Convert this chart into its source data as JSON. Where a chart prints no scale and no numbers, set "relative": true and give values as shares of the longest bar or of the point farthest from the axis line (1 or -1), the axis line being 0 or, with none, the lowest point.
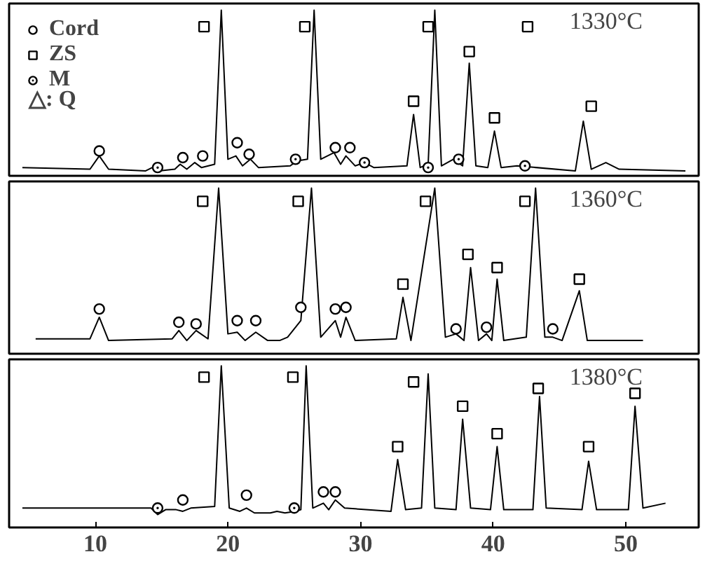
{
  "chart_data": [
    {
      "type": "line",
      "title": "1330°C",
      "relative": true,
      "xlim": [
        3.5,
        55.5
      ],
      "xticks": [
        10,
        20,
        30,
        40,
        50
      ],
      "tick_labels": false,
      "legend": "top left",
      "grid": false,
      "series": [
        {
          "color": "#000000",
          "x": [
            4.5,
            9.6,
            10.3,
            11.0,
            13.8,
            14.3,
            14.8,
            16.0,
            16.4,
            16.9,
            17.5,
            18.0,
            19.0,
            19.5,
            20.0,
            20.6,
            21.1,
            21.7,
            22.3,
            24.7,
            25.2,
            26.0,
            26.5,
            27.0,
            28.0,
            28.5,
            28.9,
            29.6,
            30.3,
            31.0,
            33.5,
            34.0,
            34.5,
            35.1,
            35.6,
            36.1,
            37.0,
            37.7,
            38.2,
            38.7,
            39.6,
            40.1,
            40.6,
            41.8,
            46.2,
            46.8,
            47.4,
            48.5,
            49.5,
            54.5
          ],
          "values": [
            0.05,
            0.04,
            0.12,
            0.04,
            0.03,
            0.05,
            0.03,
            0.04,
            0.07,
            0.04,
            0.08,
            0.05,
            0.07,
            1.0,
            0.1,
            0.12,
            0.06,
            0.1,
            0.05,
            0.06,
            0.09,
            0.1,
            1.0,
            0.1,
            0.14,
            0.07,
            0.12,
            0.06,
            0.08,
            0.05,
            0.06,
            0.37,
            0.05,
            0.07,
            1.0,
            0.06,
            0.1,
            0.06,
            0.68,
            0.06,
            0.05,
            0.27,
            0.05,
            0.06,
            0.03,
            0.33,
            0.04,
            0.08,
            0.04,
            0.03
          ]
        },
        {
          "type": "scatter",
          "name": "Cord",
          "marker": "circle",
          "color": "#000000",
          "x": [
            10.3,
            16.6,
            18.1,
            20.7,
            21.6,
            28.1,
            29.2
          ],
          "values": [
            0.15,
            0.11,
            0.12,
            0.2,
            0.13,
            0.17,
            0.17
          ]
        },
        {
          "type": "scatter",
          "name": "ZS",
          "marker": "square",
          "color": "#000000",
          "x": [
            18.2,
            25.8,
            35.1,
            42.6,
            34.0,
            38.2,
            40.1,
            47.4
          ],
          "values": [
            0.9,
            0.9,
            0.9,
            0.9,
            0.45,
            0.75,
            0.35,
            0.42
          ]
        },
        {
          "type": "scatter",
          "name": "M",
          "marker": "circle_dot",
          "color": "#000000",
          "x": [
            14.7,
            25.1,
            30.3,
            35.1,
            37.4,
            42.4
          ],
          "values": [
            0.05,
            0.1,
            0.08,
            0.05,
            0.1,
            0.06
          ]
        }
      ],
      "annotations": [
        "△: Q"
      ]
    },
    {
      "type": "line",
      "title": "1360°C",
      "relative": true,
      "xlim": [
        3.5,
        55.5
      ],
      "xticks": [
        10,
        20,
        30,
        40,
        50
      ],
      "tick_labels": false,
      "grid": false,
      "series": [
        {
          "color": "#000000",
          "x": [
            5.5,
            9.6,
            10.3,
            11.0,
            15.8,
            16.3,
            16.9,
            17.6,
            18.5,
            19.3,
            20.0,
            20.7,
            21.3,
            22.1,
            23.0,
            23.9,
            24.5,
            25.5,
            26.3,
            27.0,
            28.1,
            28.5,
            28.9,
            29.6,
            32.7,
            33.2,
            33.8,
            35.6,
            36.4,
            37.2,
            37.8,
            38.3,
            38.9,
            39.5,
            39.9,
            40.3,
            40.8,
            42.5,
            43.2,
            43.9,
            44.5,
            45.2,
            46.5,
            47.1,
            51.3
          ],
          "values": [
            0.09,
            0.09,
            0.22,
            0.08,
            0.09,
            0.14,
            0.08,
            0.14,
            0.09,
            1.0,
            0.12,
            0.13,
            0.08,
            0.13,
            0.08,
            0.08,
            0.1,
            0.2,
            1.0,
            0.1,
            0.2,
            0.1,
            0.22,
            0.08,
            0.09,
            0.34,
            0.08,
            1.0,
            0.1,
            0.12,
            0.08,
            0.52,
            0.08,
            0.12,
            0.08,
            0.45,
            0.08,
            0.1,
            1.0,
            0.1,
            0.1,
            0.08,
            0.38,
            0.08,
            0.08
          ]
        },
        {
          "type": "scatter",
          "marker": "circle",
          "color": "#000000",
          "x": [
            10.3,
            16.3,
            17.6,
            20.7,
            22.1,
            25.5,
            28.1,
            28.9,
            37.2,
            39.5,
            44.5
          ],
          "values": [
            0.27,
            0.19,
            0.18,
            0.2,
            0.2,
            0.28,
            0.27,
            0.28,
            0.15,
            0.16,
            0.15
          ]
        },
        {
          "type": "scatter",
          "marker": "square",
          "color": "#000000",
          "x": [
            18.1,
            25.3,
            34.9,
            42.4,
            33.2,
            38.1,
            40.3,
            46.5
          ],
          "values": [
            0.92,
            0.92,
            0.92,
            0.92,
            0.42,
            0.6,
            0.52,
            0.45
          ]
        }
      ]
    },
    {
      "type": "line",
      "title": "1380°C",
      "relative": true,
      "xlim": [
        3.5,
        55.5
      ],
      "xticks": [
        10,
        20,
        30,
        40,
        50
      ],
      "tick_labels": "x",
      "grid": false,
      "series": [
        {
          "color": "#000000",
          "x": [
            4.5,
            14.2,
            14.7,
            15.3,
            16.1,
            16.6,
            17.2,
            19.0,
            19.5,
            20.1,
            20.9,
            21.4,
            22.0,
            23.2,
            23.7,
            24.3,
            25.1,
            25.5,
            25.9,
            26.4,
            27.2,
            27.6,
            28.1,
            28.8,
            32.3,
            32.8,
            33.4,
            34.6,
            35.1,
            35.6,
            37.2,
            37.7,
            38.3,
            39.8,
            40.3,
            40.8,
            43.0,
            43.5,
            44.0,
            46.7,
            47.2,
            47.8,
            50.2,
            50.7,
            51.3,
            53.0
          ],
          "values": [
            0.12,
            0.12,
            0.08,
            0.11,
            0.11,
            0.1,
            0.12,
            0.13,
            1.0,
            0.12,
            0.1,
            0.12,
            0.09,
            0.09,
            0.1,
            0.09,
            0.1,
            0.11,
            1.0,
            0.12,
            0.15,
            0.11,
            0.17,
            0.12,
            0.1,
            0.42,
            0.11,
            0.12,
            0.95,
            0.12,
            0.11,
            0.67,
            0.12,
            0.11,
            0.5,
            0.11,
            0.11,
            0.81,
            0.12,
            0.11,
            0.41,
            0.11,
            0.11,
            0.75,
            0.12,
            0.15
          ]
        },
        {
          "type": "scatter",
          "marker": "circle",
          "color": "#000000",
          "x": [
            16.6,
            21.4,
            27.2,
            28.1
          ],
          "values": [
            0.17,
            0.2,
            0.22,
            0.22
          ]
        },
        {
          "type": "scatter",
          "marker": "square",
          "color": "#000000",
          "x": [
            18.2,
            24.9,
            32.8,
            34.0,
            37.7,
            40.3,
            43.4,
            47.2,
            50.7
          ],
          "values": [
            0.93,
            0.93,
            0.5,
            0.9,
            0.75,
            0.58,
            0.86,
            0.5,
            0.83
          ]
        },
        {
          "type": "scatter",
          "marker": "circle_dot",
          "color": "#000000",
          "x": [
            14.7,
            25.0
          ],
          "values": [
            0.12,
            0.12
          ]
        }
      ]
    }
  ]
}
